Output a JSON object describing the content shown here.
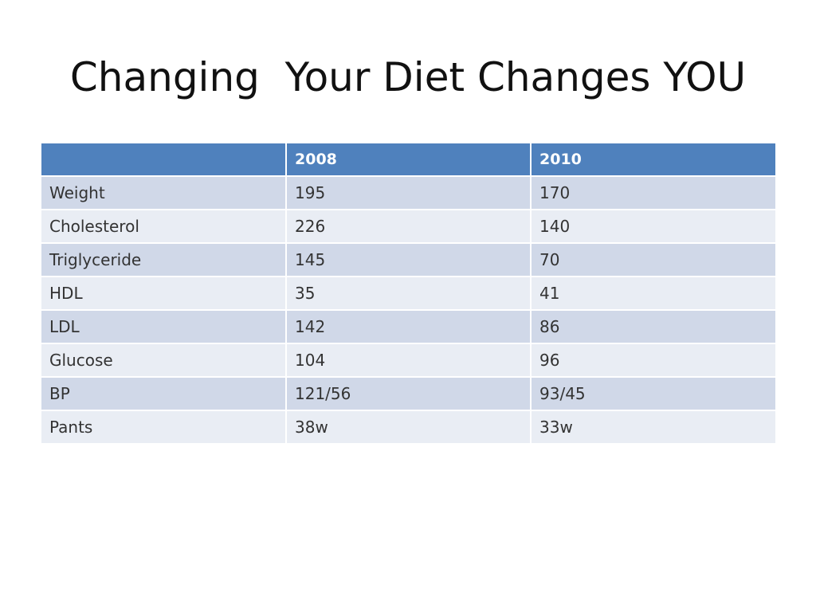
{
  "slide": {
    "title": "Changing  Your Diet Changes YOU"
  },
  "table": {
    "headers": [
      "",
      "2008",
      "2010"
    ],
    "rows": [
      [
        "Weight",
        "195",
        "170"
      ],
      [
        "Cholesterol",
        "226",
        "140"
      ],
      [
        "Triglyceride",
        "145",
        "70"
      ],
      [
        "HDL",
        "35",
        "41"
      ],
      [
        "LDL",
        "142",
        "86"
      ],
      [
        "Glucose",
        "104",
        "96"
      ],
      [
        "BP",
        "121/56",
        "93/45"
      ],
      [
        "Pants",
        "38w",
        "33w"
      ]
    ]
  },
  "colors": {
    "header_bg": "#4f81bd",
    "row_dark": "#d0d8e8",
    "row_light": "#e9edf4"
  }
}
